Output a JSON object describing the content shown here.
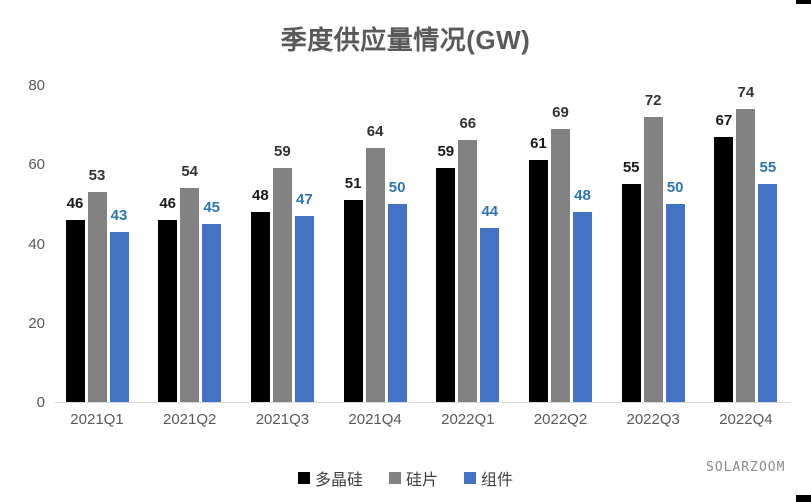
{
  "title": "季度供应量情况(GW)",
  "watermark": "SOLARZOOM",
  "chart_data": {
    "type": "bar",
    "title": "季度供应量情况(GW)",
    "categories": [
      "2021Q1",
      "2021Q2",
      "2021Q3",
      "2021Q4",
      "2022Q1",
      "2022Q2",
      "2022Q3",
      "2022Q4"
    ],
    "series": [
      {
        "name": "多晶硅",
        "color": "#000000",
        "label_color": "#1a1a1a",
        "values": [
          46,
          46,
          48,
          51,
          59,
          61,
          55,
          67
        ]
      },
      {
        "name": "硅片",
        "color": "#828282",
        "label_color": "#333333",
        "values": [
          53,
          54,
          59,
          64,
          66,
          69,
          72,
          74
        ]
      },
      {
        "name": "组件",
        "color": "#4472c4",
        "label_color": "#2e75b6",
        "values": [
          43,
          45,
          47,
          50,
          44,
          48,
          50,
          55
        ]
      }
    ],
    "xlabel": "",
    "ylabel": "",
    "ylim": [
      0,
      80
    ],
    "yticks": [
      0,
      20,
      40,
      60,
      80
    ],
    "grid": false,
    "legend_position": "bottom",
    "data_labels": true,
    "colors": {
      "title_text": "#595959",
      "axis_text": "#595959",
      "axis_line": "#d9d9d9",
      "background": "#ffffff"
    }
  }
}
